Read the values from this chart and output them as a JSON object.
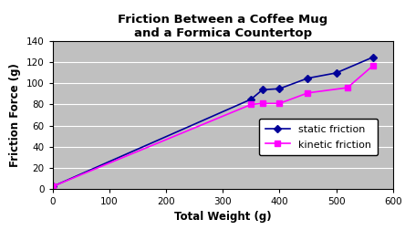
{
  "title_line1": "Friction Between a Coffee Mug",
  "title_line2": "and a Formica Countertop",
  "xlabel": "Total Weight (g)",
  "ylabel": "Friction Force (g)",
  "static_x": [
    0,
    350,
    370,
    400,
    450,
    500,
    565
  ],
  "static_y": [
    2,
    85,
    94,
    95,
    105,
    110,
    125
  ],
  "kinetic_x": [
    0,
    350,
    370,
    400,
    450,
    520,
    565
  ],
  "kinetic_y": [
    2,
    80,
    81,
    81,
    91,
    96,
    117
  ],
  "static_color": "#000099",
  "kinetic_color": "#ff00ff",
  "static_label": "static friction",
  "kinetic_label": "kinetic friction",
  "xlim": [
    0,
    600
  ],
  "ylim": [
    0,
    140
  ],
  "xticks": [
    0,
    100,
    200,
    300,
    400,
    500,
    600
  ],
  "yticks": [
    0,
    20,
    40,
    60,
    80,
    100,
    120,
    140
  ],
  "plot_bg": "#c0c0c0",
  "fig_bg": "#ffffff",
  "title_fontsize": 9.5,
  "axis_label_fontsize": 8.5,
  "tick_fontsize": 7.5,
  "legend_fontsize": 8,
  "marker_size": 4
}
